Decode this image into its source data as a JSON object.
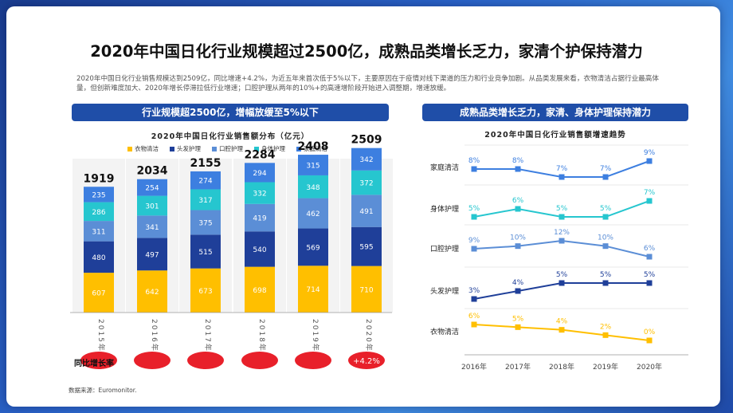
{
  "title": "2020年中国日化行业规模超过2500亿，成熟品类增长乏力，家清个护保持潜力",
  "description": "2020年中国日化行业销售规模达到2509亿，同比增速+4.2%，为近五年来首次低于5%以下，主要原因在于疫情对线下渠道的压力和行业竞争加剧。从品类发展来看，衣物清洁占据行业最高体量，但创新难度加大、2020年增长停滞拉低行业增速；口腔护理从两年的10%+的高速增阶段开始进入调整期，增速放缓。",
  "left_header": "行业规模超2500亿，增幅放缓至5%以下",
  "right_header": "成熟品类增长乏力，家清、身体护理保持潜力",
  "yoy_label": "同比增长率",
  "yoy_badge": "+4.2%",
  "source": "数据来源：Euromonitor.",
  "colors": {
    "衣物清洁": "#ffbf00",
    "头发护理": "#1f3f99",
    "口腔护理": "#5b8ed6",
    "身体护理": "#26c6cf",
    "家庭清洁": "#3d7fe0",
    "badge": "#e8202a",
    "header": "#1f4ea8"
  },
  "chart_data": [
    {
      "type": "bar",
      "stacked": true,
      "title": "2020年中国日化行业销售额分布（亿元）",
      "categories": [
        "2015年",
        "2016年",
        "2017年",
        "2018年",
        "2019年",
        "2020年"
      ],
      "series": [
        {
          "name": "衣物清洁",
          "values": [
            607,
            642,
            673,
            698,
            714,
            710
          ]
        },
        {
          "name": "头发护理",
          "values": [
            480,
            497,
            515,
            540,
            569,
            595
          ]
        },
        {
          "name": "口腔护理",
          "values": [
            311,
            341,
            375,
            419,
            462,
            491
          ]
        },
        {
          "name": "身体护理",
          "values": [
            286,
            301,
            317,
            332,
            348,
            372
          ]
        },
        {
          "name": "家庭清洁",
          "values": [
            235,
            254,
            274,
            294,
            315,
            342
          ]
        }
      ],
      "totals": [
        1919,
        2034,
        2155,
        2284,
        2408,
        2509
      ]
    },
    {
      "type": "line",
      "title": "2020年中国日化行业销售额增速趋势",
      "x": [
        "2016年",
        "2017年",
        "2018年",
        "2019年",
        "2020年"
      ],
      "series": [
        {
          "name": "家庭清洁",
          "values": [
            8,
            8,
            7,
            7,
            9
          ],
          "labels": [
            "8%",
            "8%",
            "7%",
            "7%",
            "9%"
          ]
        },
        {
          "name": "身体护理",
          "values": [
            5,
            6,
            5,
            5,
            7
          ],
          "labels": [
            "5%",
            "6%",
            "5%",
            "5%",
            "7%"
          ]
        },
        {
          "name": "口腔护理",
          "values": [
            9,
            10,
            12,
            10,
            6
          ],
          "labels": [
            "9%",
            "10%",
            "12%",
            "10%",
            "6%"
          ]
        },
        {
          "name": "头发护理",
          "values": [
            3,
            4,
            5,
            5,
            5
          ],
          "labels": [
            "3%",
            "4%",
            "5%",
            "5%",
            "5%"
          ]
        },
        {
          "name": "衣物清洁",
          "values": [
            6,
            5,
            4,
            2,
            0
          ],
          "labels": [
            "6%",
            "5%",
            "4%",
            "2%",
            "0%"
          ]
        }
      ]
    }
  ]
}
